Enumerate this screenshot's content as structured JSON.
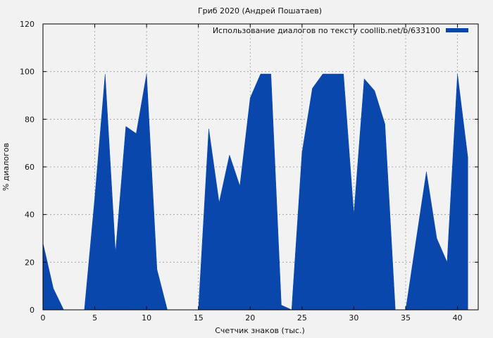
{
  "chart_data": {
    "type": "area",
    "title": "Гриб 2020 (Андрей Пошатаев)",
    "xlabel": "Счетчик знаков (тыс.)",
    "ylabel": "% диалогов",
    "xlim": [
      0,
      42
    ],
    "ylim": [
      0,
      120
    ],
    "x_ticks": [
      0,
      5,
      10,
      15,
      20,
      25,
      30,
      35,
      40
    ],
    "y_ticks": [
      0,
      20,
      40,
      60,
      80,
      100,
      120
    ],
    "grid": true,
    "legend_position": "top-right",
    "series": [
      {
        "name": "Использование диалогов по тексту coollib.net/b/633100",
        "color": "#0a47ad",
        "x": [
          0,
          1,
          2,
          3,
          4,
          5,
          6,
          7,
          8,
          9,
          10,
          11,
          12,
          13,
          14,
          15,
          16,
          17,
          18,
          19,
          20,
          21,
          22,
          23,
          24,
          25,
          26,
          27,
          28,
          29,
          30,
          31,
          32,
          33,
          34,
          35,
          36,
          37,
          38,
          39,
          40,
          41
        ],
        "values": [
          28,
          9,
          0,
          0,
          0,
          47,
          99,
          24,
          77,
          74,
          99,
          17,
          0,
          0,
          0,
          0,
          76,
          45,
          65,
          52,
          89,
          99,
          99,
          2,
          0,
          66,
          93,
          99,
          99,
          99,
          40,
          97,
          92,
          78,
          0,
          0,
          29,
          58,
          30,
          20,
          99,
          64
        ]
      }
    ]
  }
}
